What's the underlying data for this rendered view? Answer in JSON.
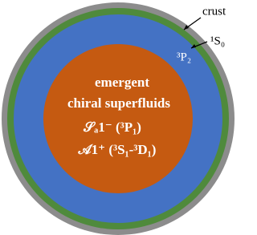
{
  "labels": {
    "crust": "crust",
    "outer_layer": "¹S₀",
    "middle_layer": "³P₂"
  },
  "core": {
    "lines": [
      "emergent",
      "chiral superfluids",
      "𝒮ₐ1⁻ (³P₁)",
      "𝒜1⁺ (³S₁-³D₁)"
    ]
  }
}
